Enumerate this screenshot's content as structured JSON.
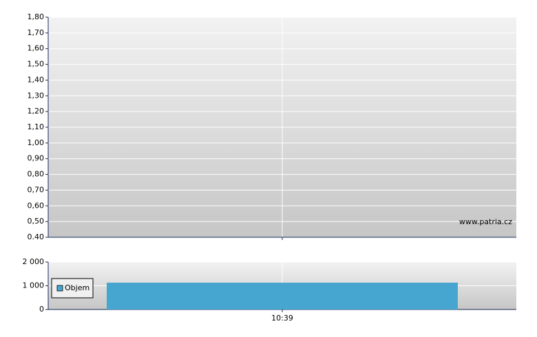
{
  "chart_data": [
    {
      "type": "line",
      "ylim": [
        0.4,
        1.8
      ],
      "yticks": [
        {
          "value": 0.4,
          "label": "0.40"
        },
        {
          "value": 0.5,
          "label": "0,50"
        },
        {
          "value": 0.6,
          "label": "0,60"
        },
        {
          "value": 0.7,
          "label": "0,70"
        },
        {
          "value": 0.8,
          "label": "0,80"
        },
        {
          "value": 0.9,
          "label": "0,90"
        },
        {
          "value": 1.0,
          "label": "1,00"
        },
        {
          "value": 1.1,
          "label": "1,10"
        },
        {
          "value": 1.2,
          "label": "1,20"
        },
        {
          "value": 1.3,
          "label": "1,30"
        },
        {
          "value": 1.4,
          "label": "1,40"
        },
        {
          "value": 1.5,
          "label": "1,50"
        },
        {
          "value": 1.6,
          "label": "1,60"
        },
        {
          "value": 1.7,
          "label": "1,70"
        },
        {
          "value": 1.8,
          "label": "1,80"
        }
      ],
      "grid": true,
      "annotation": "www.patria.cz"
    },
    {
      "type": "bar",
      "categories": [
        "10:39"
      ],
      "series": [
        {
          "name": "Objem",
          "color": "#46a6cf",
          "values": [
            1130
          ]
        }
      ],
      "ylim": [
        0,
        2000
      ],
      "yticks": [
        0,
        {
          "value": 1000,
          "label": "1 000"
        },
        {
          "value": 2000,
          "label": "2 000"
        }
      ],
      "grid": true,
      "legend": "left"
    }
  ]
}
